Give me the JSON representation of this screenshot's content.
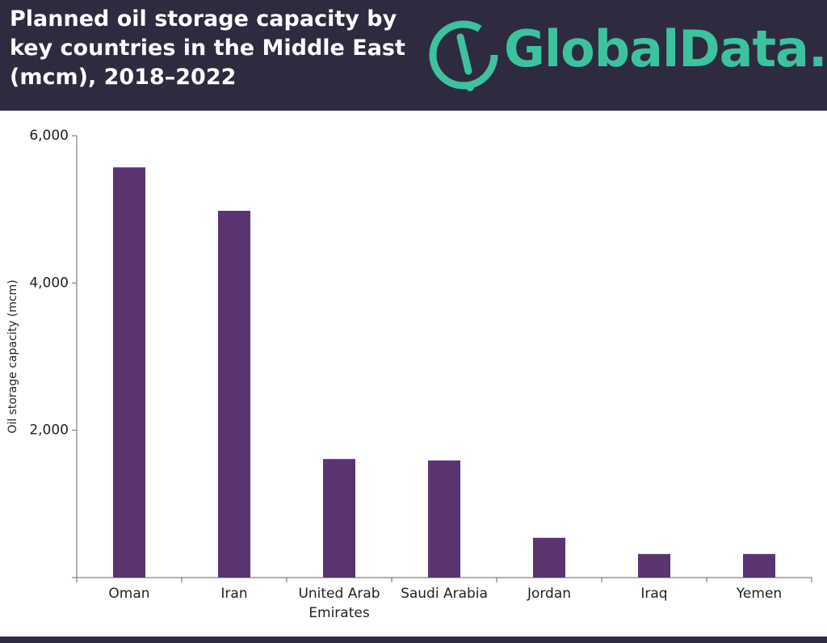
{
  "header": {
    "logo": "GlobalData."
  },
  "chart_data": {
    "type": "bar",
    "title": "Planned oil storage capacity by key countries in the Middle East (mcm), 2018–2022",
    "y_label": "Oil storage capacity (mcm)",
    "categories": [
      "Oman",
      "Iran",
      "United Arab Emirates",
      "Saudi Arabia",
      "Jordan",
      "Iraq",
      "Yemen"
    ],
    "values": [
      5570,
      4980,
      1610,
      1590,
      540,
      320,
      320
    ],
    "color": "#5a3470",
    "ylim": [
      0,
      6000
    ],
    "yticks": [
      {
        "value": 2000,
        "label": "2,000"
      },
      {
        "value": 4000,
        "label": "4,000"
      },
      {
        "value": 6000,
        "label": "6,000"
      }
    ],
    "grid": false
  }
}
